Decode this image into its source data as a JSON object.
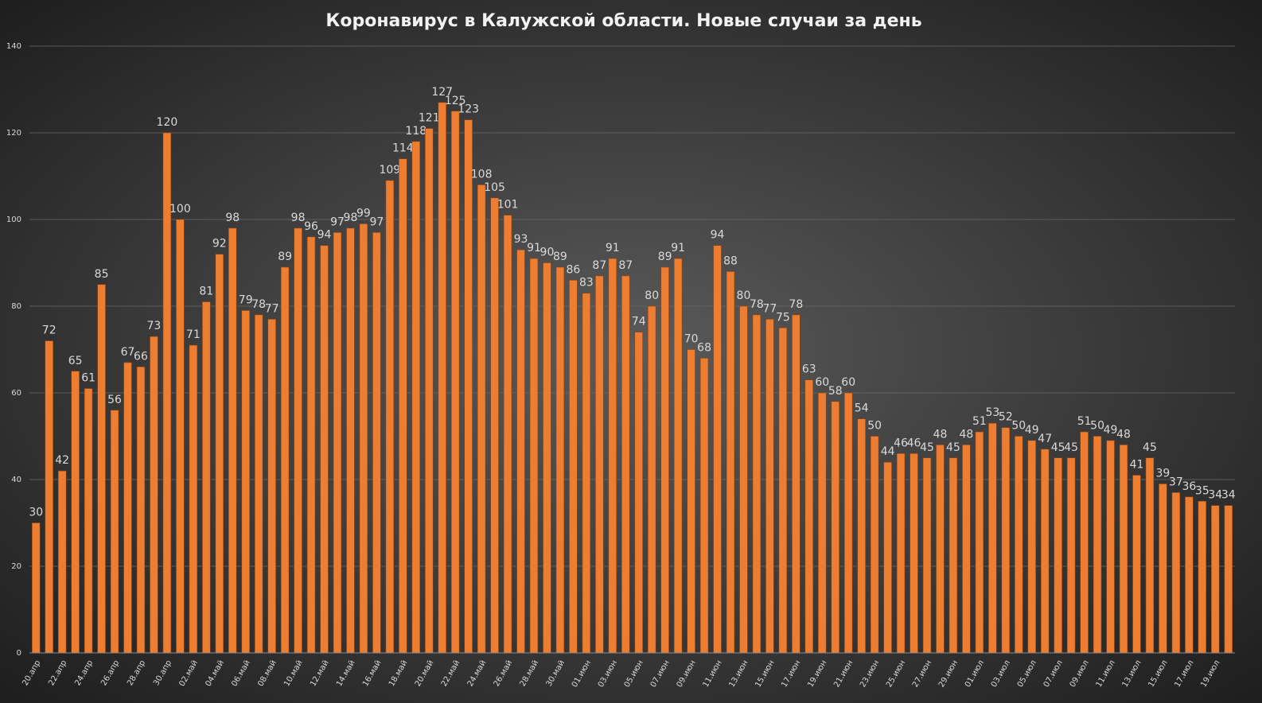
{
  "chart_data": {
    "type": "bar",
    "title": "Коронавирус в Калужской области. Новые случаи за день",
    "categories": [
      "20.апр",
      null,
      "22.апр",
      null,
      "24.апр",
      null,
      "26.апр",
      null,
      "28.апр",
      null,
      "30.апр",
      null,
      "02.май",
      null,
      "04.май",
      null,
      "06.май",
      null,
      "08.май",
      null,
      "10.май",
      null,
      "12.май",
      null,
      "14.май",
      null,
      "16.май",
      null,
      "18.май",
      null,
      "20.май",
      null,
      "22.май",
      null,
      "24.май",
      null,
      "26.май",
      null,
      "28.май",
      null,
      "30.май",
      null,
      "01.июн",
      null,
      "03.июн",
      null,
      "05.июн",
      null,
      "07.июн",
      null,
      "09.июн",
      null,
      "11.июн",
      null,
      "13.июн",
      null,
      "15.июн",
      null,
      "17.июн",
      null,
      "19.июн",
      null,
      "21.июн",
      null,
      "23.июн",
      null,
      "25.июн",
      null,
      "27.июн",
      null,
      "29.июн",
      null,
      "01.июл",
      null,
      "03.июл",
      null,
      "05.июл",
      null,
      "07.июл",
      null,
      "09.июл",
      null,
      "11.июл",
      null,
      "13.июл",
      null,
      "15.июл",
      null,
      "17.июл",
      null,
      "19.июл",
      null
    ],
    "values": [
      30,
      72,
      42,
      65,
      61,
      85,
      56,
      67,
      66,
      73,
      120,
      100,
      71,
      81,
      92,
      98,
      79,
      78,
      77,
      89,
      98,
      96,
      94,
      97,
      98,
      99,
      97,
      109,
      114,
      118,
      121,
      127,
      125,
      123,
      108,
      105,
      101,
      93,
      91,
      90,
      89,
      86,
      83,
      87,
      91,
      87,
      74,
      80,
      89,
      91,
      70,
      68,
      94,
      88,
      80,
      78,
      77,
      75,
      78,
      63,
      60,
      58,
      60,
      54,
      50,
      44,
      46,
      46,
      45,
      48,
      45,
      48,
      51,
      53,
      52,
      50,
      49,
      47,
      45,
      45,
      51,
      50,
      49,
      48,
      41,
      45,
      39,
      37,
      36,
      35,
      34,
      34
    ],
    "color": "#ed7d31",
    "ylim": [
      0,
      140
    ],
    "yticks": [
      0,
      20,
      40,
      60,
      80,
      100,
      120,
      140
    ],
    "grid": true
  }
}
